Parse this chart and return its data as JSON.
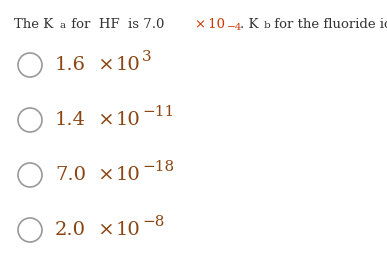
{
  "background_color": "#ffffff",
  "text_color": "#333333",
  "option_text_color": "#8B4513",
  "orange_color": "#cc3300",
  "circle_color": "#999999",
  "title_fontsize": 9.5,
  "option_fontsize": 14,
  "exp_fontsize": 11,
  "sub_fontsize": 7.5,
  "options": [
    {
      "mantissa": "1.6",
      "exp_sign": "",
      "exp": "3"
    },
    {
      "mantissa": "1.4",
      "exp_sign": "−",
      "exp": "11"
    },
    {
      "mantissa": "7.0",
      "exp_sign": "−",
      "exp": "18"
    },
    {
      "mantissa": "2.0",
      "exp_sign": "−",
      "exp": "8"
    }
  ],
  "fig_width": 3.87,
  "fig_height": 2.79,
  "dpi": 100
}
